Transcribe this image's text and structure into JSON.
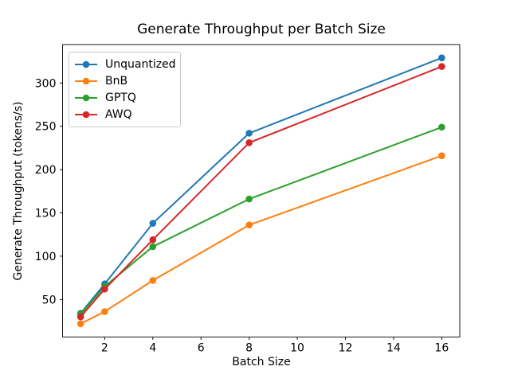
{
  "chart_data": {
    "type": "line",
    "title": "Generate Throughput per Batch Size",
    "xlabel": "Batch Size",
    "ylabel": "Generate Throughput (tokens/s)",
    "x": [
      1,
      2,
      4,
      8,
      16
    ],
    "series": [
      {
        "name": "Unquantized",
        "color": "#1f77b4",
        "values": [
          34,
          68,
          138,
          242,
          329
        ]
      },
      {
        "name": "BnB",
        "color": "#ff7f0e",
        "values": [
          22,
          36,
          72,
          136,
          216
        ]
      },
      {
        "name": "GPTQ",
        "color": "#2ca02c",
        "values": [
          33,
          65,
          111,
          166,
          249
        ]
      },
      {
        "name": "AWQ",
        "color": "#d62728",
        "values": [
          30,
          62,
          119,
          231,
          319
        ]
      }
    ],
    "xticks": [
      2,
      4,
      6,
      8,
      10,
      12,
      14,
      16
    ],
    "yticks": [
      50,
      100,
      150,
      200,
      250,
      300
    ],
    "xlim": [
      0.25,
      16.75
    ],
    "ylim": [
      6.65,
      344.35
    ],
    "grid": false,
    "marker": "o",
    "legend_position": "upper-left",
    "axes_color": "#000000",
    "background_color": "#ffffff"
  }
}
